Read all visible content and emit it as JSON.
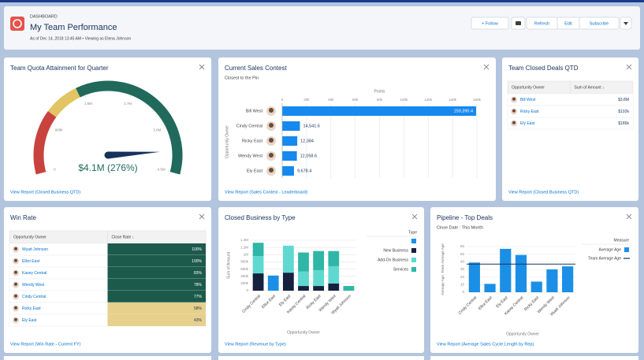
{
  "header": {
    "label": "DASHBOARD",
    "title": "My Team Performance",
    "subtitle": "As of Dec 14, 2018 13:45 AM • Viewing as Elena Johnson",
    "buttons": [
      "+ Follow",
      "Refresh",
      "Edit",
      "Subscribe"
    ]
  },
  "widgets": [
    {
      "title": "Team Quota Attainment for Quarter",
      "footer": "View Report (Closed Business QTD)",
      "chart": {
        "type": "gauge",
        "value": 4100000,
        "value_label": "$4.1M (276%)",
        "lim": [
          0,
          4500000
        ],
        "ticks": [
          {
            "value": 0,
            "label": "0"
          },
          {
            "value": 900000,
            "label": "900k"
          },
          {
            "value": 1800000,
            "label": "1.8M"
          },
          {
            "value": 2700000,
            "label": "2.7M"
          },
          {
            "value": 3600000,
            "label": "3.6M"
          },
          {
            "value": 4500000,
            "label": "4.5M"
          }
        ],
        "bands": [
          {
            "to": 1100000,
            "color": "#c9433e"
          },
          {
            "to": 1700000,
            "color": "#e3c464"
          },
          {
            "to": 4500000,
            "color": "#216a5b"
          }
        ],
        "needle_color": "#16325c",
        "value_color": "#1e6b5c"
      }
    },
    {
      "title": "Current Sales Contest",
      "subtitle": "Closest to the Pin",
      "footer": "View Report (Sales Contest - Leaderboard)",
      "chart": {
        "type": "hbar",
        "categories": [
          "Bill West",
          "Cindy Central",
          "Ricky East",
          "Wendy West",
          "Ely East"
        ],
        "values": [
          159390.4,
          14541.6,
          12384,
          12058.6,
          9678.4
        ],
        "value_labels": [
          "159,390.4",
          "14,541.6",
          "12,384",
          "12,058.6",
          "9,678.4"
        ],
        "xlabel": "Points",
        "ylabel": "Opportunity Owner",
        "xlim": [
          0,
          160000
        ],
        "xticks": [
          0,
          {
            "value": 20000,
            "label": "20k"
          },
          {
            "value": 40000,
            "label": "40k"
          },
          {
            "value": 60000,
            "label": "60k"
          },
          {
            "value": 80000,
            "label": "80k"
          },
          {
            "value": 100000,
            "label": "100k"
          },
          {
            "value": 120000,
            "label": "120k"
          },
          {
            "value": 140000,
            "label": "140k"
          },
          {
            "value": 160000,
            "label": "160k"
          }
        ],
        "color": "#1589ee"
      }
    },
    {
      "title": "Team Closed Deals QTD",
      "footer": "View Report (Closed Business QTD)",
      "table": {
        "columns": [
          "Opportunity Owner",
          "Sum of Amount ↓"
        ],
        "rows": [
          [
            "Bill West",
            "$3.8M"
          ],
          [
            "Ricky East",
            "$192k"
          ],
          [
            "Ely East",
            "$186k"
          ]
        ]
      }
    },
    {
      "title": "Win Rate",
      "footer": "View Report (Win Rate - Current FY)",
      "table": {
        "columns": [
          "Opportunity Owner",
          "Close Rate ↓"
        ],
        "rows": [
          [
            "Wyatt Johnson",
            "100%"
          ],
          [
            "Elliot East",
            "100%"
          ],
          [
            "Kasey Central",
            "83%"
          ],
          [
            "Wendy West",
            "78%"
          ],
          [
            "Cindy Central",
            "77%"
          ],
          [
            "Ricky East",
            "58%"
          ],
          [
            "Ely East",
            "43%"
          ]
        ],
        "cell_colors": [
          "#1c5a4c",
          "#1c5a4c",
          "#1c5a4c",
          "#1c5a4c",
          "#1c5a4c",
          "#e6d08c",
          "#e6d08c"
        ]
      }
    },
    {
      "title": "Closed Business by Type",
      "footer": "View Report (Revenue by Type)",
      "chart": {
        "type": "stacked_bar",
        "categories": [
          "Cindy Central",
          "Elliot East",
          "Ely East",
          "Kasey Central",
          "Ricky East",
          "Wendy West",
          "Wyatt Johnson"
        ],
        "xlabel": "Opportunity Owner",
        "ylabel": "Sum of Amount",
        "legend_title": "Type",
        "ylim": [
          0,
          1400000
        ],
        "yticks": [
          0,
          {
            "value": 200000,
            "label": "200k"
          },
          {
            "value": 400000,
            "label": "400k"
          },
          {
            "value": 600000,
            "label": "600k"
          },
          {
            "value": 800000,
            "label": "800k"
          },
          {
            "value": 1000000,
            "label": "1M"
          },
          {
            "value": 1200000,
            "label": "1.2M"
          },
          {
            "value": 1400000,
            "label": "1.4M"
          }
        ],
        "series": [
          {
            "name": null,
            "color": "#1b8fe6",
            "values": [
              null,
              420000,
              null,
              null,
              null,
              null,
              null
            ]
          },
          {
            "name": "New Business",
            "color": "#16203f",
            "values": [
              480000,
              null,
              500000,
              130000,
              130000,
              200000,
              null
            ]
          },
          {
            "name": "Add-On Business",
            "color": "#5fd9d0",
            "values": [
              480000,
              null,
              750000,
              400000,
              440000,
              480000,
              null
            ]
          },
          {
            "name": "Services",
            "color": "#2fb6a6",
            "values": [
              370000,
              null,
              null,
              530000,
              530000,
              420000,
              130000
            ]
          }
        ]
      }
    },
    {
      "title": "Pipeline - Top Deals",
      "subtitle": "Close Date : This Month",
      "footer": "View Report (Average Sales Cycle Length by Rep)",
      "chart": {
        "type": "bar_line",
        "categories": [
          "Cindy Central",
          "Elliot East",
          "Ely East",
          "Kasey Central",
          "Ricky East",
          "Wendy West",
          "Wyatt Johnson"
        ],
        "xlabel": "Opportunity Owner",
        "ylabel": "Average Age, Team Average Age",
        "legend_title": "Measure",
        "ylim": [
          0,
          60
        ],
        "yticks": [
          0,
          10,
          20,
          30,
          40,
          50,
          60
        ],
        "series": [
          {
            "name": "Average Age",
            "color": "#1b8fe6",
            "values": [
              39,
              11,
              57,
              49,
              14,
              30,
              34
            ]
          }
        ],
        "reference_line": {
          "name": "Team Average Age",
          "value": 37,
          "color": "#16325c"
        }
      }
    }
  ]
}
